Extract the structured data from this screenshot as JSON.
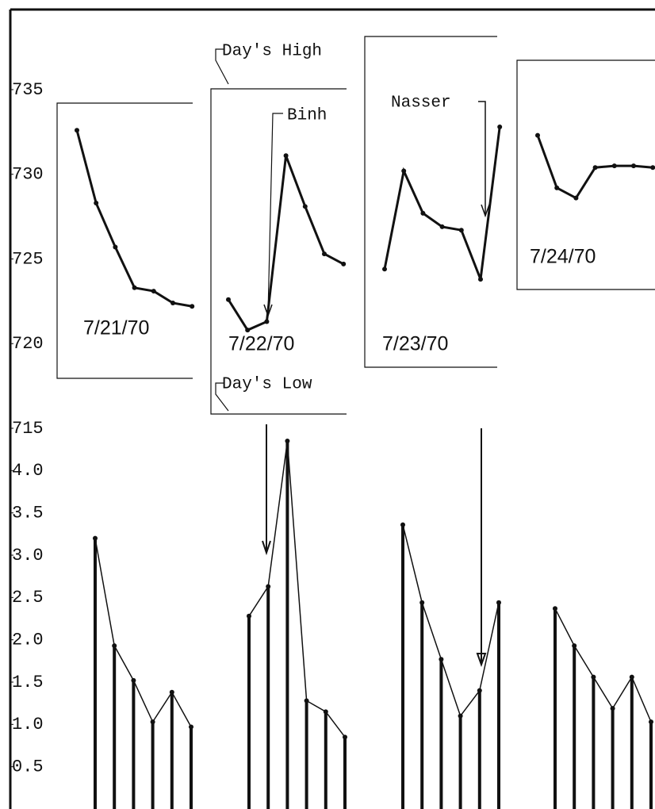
{
  "chart_data": [
    {
      "type": "line",
      "annotations": [
        "Day's High",
        "Day's Low",
        "Binh",
        "Nasser"
      ],
      "series": [
        {
          "name": "7/21/70",
          "color": "#111111",
          "values": [
            732.6,
            728.3,
            725.7,
            723.3,
            723.1,
            722.4,
            722.2
          ]
        },
        {
          "name": "7/22/70",
          "color": "#111111",
          "values": [
            722.6,
            720.8,
            721.3,
            731.1,
            728.1,
            725.3,
            724.7
          ]
        },
        {
          "name": "7/23/70",
          "color": "#111111",
          "values": [
            724.4,
            730.2,
            727.7,
            726.9,
            726.7,
            723.8,
            732.8
          ]
        },
        {
          "name": "7/24/70",
          "color": "#111111",
          "values": [
            732.3,
            729.2,
            728.6,
            730.4,
            730.5,
            730.5,
            730.4
          ]
        }
      ],
      "ylim": [
        715,
        735
      ],
      "yticks": [
        715,
        720,
        725,
        730,
        735
      ]
    },
    {
      "type": "bar",
      "series": [
        {
          "color": "#111111",
          "values": [
            3.2,
            1.93,
            1.52,
            1.03,
            1.38,
            0.97
          ]
        },
        {
          "color": "#111111",
          "values": [
            2.28,
            2.63,
            4.35,
            1.28,
            1.15,
            0.85
          ]
        },
        {
          "color": "#111111",
          "values": [
            3.36,
            2.44,
            1.77,
            1.1,
            1.4,
            2.44
          ]
        },
        {
          "color": "#111111",
          "values": [
            2.37,
            1.93,
            1.56,
            1.19,
            1.56,
            1.03
          ]
        }
      ],
      "ylim": [
        0,
        4.5
      ],
      "yticks": [
        0.5,
        {
          "value": 1,
          "label": "1.0"
        },
        1.5,
        {
          "value": 2,
          "label": "2.0"
        },
        2.5,
        {
          "value": 3,
          "label": "3.0"
        },
        3.5,
        {
          "value": 4,
          "label": "4.0"
        }
      ]
    }
  ]
}
